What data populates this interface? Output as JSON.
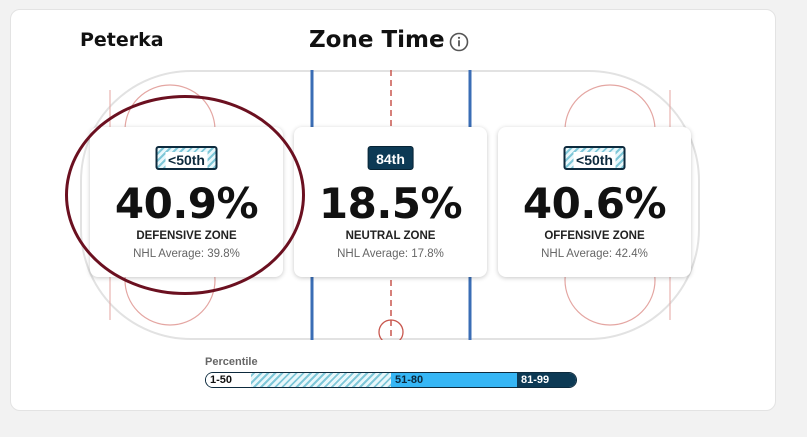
{
  "header": {
    "player_name": "Peterka",
    "title": "Zone Time",
    "info_icon": "info-icon"
  },
  "zones": [
    {
      "badge": "<50th",
      "badge_style": "hatched",
      "percent": "40.9%",
      "label": "DEFENSIVE ZONE",
      "nhl_average": "NHL Average: 39.8%"
    },
    {
      "badge": "84th",
      "badge_style": "solid-dark",
      "percent": "18.5%",
      "label": "NEUTRAL ZONE",
      "nhl_average": "NHL Average: 17.8%"
    },
    {
      "badge": "<50th",
      "badge_style": "hatched",
      "percent": "40.6%",
      "label": "OFFENSIVE ZONE",
      "nhl_average": "NHL Average: 42.4%"
    }
  ],
  "legend": {
    "title": "Percentile",
    "segments": [
      {
        "label": "1-50",
        "color": "#7fc7d8"
      },
      {
        "label": "51-80",
        "color": "#36b6f5"
      },
      {
        "label": "81-99",
        "color": "#0d3a55"
      }
    ]
  },
  "colors": {
    "blue_line": "#3a6db5",
    "red_line": "#c8574e",
    "annotation_circle": "#6b1020"
  }
}
